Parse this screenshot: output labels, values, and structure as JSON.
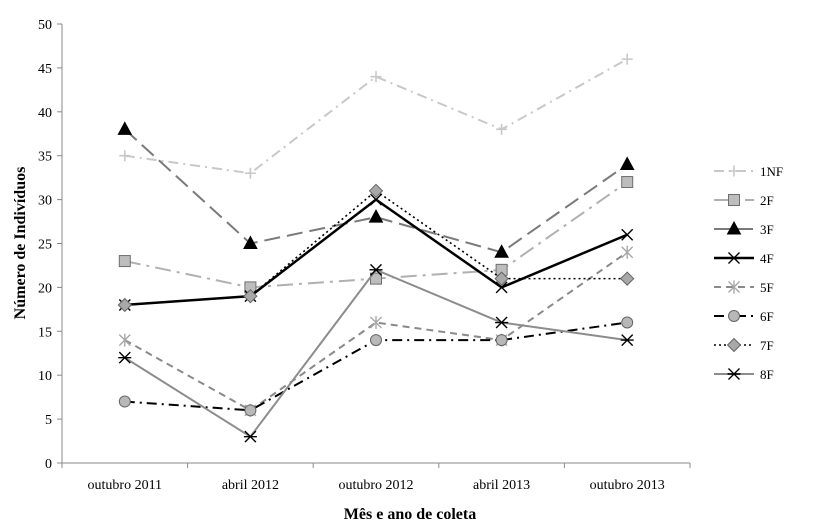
{
  "chart_data": {
    "type": "line",
    "title": "",
    "xlabel": "Mês e ano de coleta",
    "ylabel": "Número de Indivíduos",
    "categories": [
      "outubro 2011",
      "abril 2012",
      "outubro 2012",
      "abril 2013",
      "outubro 2013"
    ],
    "ylim": [
      0,
      50
    ],
    "yticks": [
      0,
      5,
      10,
      15,
      20,
      25,
      30,
      35,
      40,
      45,
      50
    ],
    "grid": false,
    "legend_position": "right",
    "series": [
      {
        "name": "1NF",
        "values": [
          35,
          33,
          44,
          38,
          46
        ],
        "color": "#c8c8c8",
        "dash": "dashdot",
        "marker": "plus",
        "width": 2
      },
      {
        "name": "2F",
        "values": [
          23,
          20,
          21,
          22,
          32
        ],
        "color": "#b0b0b0",
        "dash": "longdashdot",
        "marker": "square",
        "width": 2
      },
      {
        "name": "3F",
        "values": [
          38,
          25,
          28,
          24,
          34
        ],
        "color": "#7a7a7a",
        "dash": "longdash",
        "marker": "triangle",
        "width": 2
      },
      {
        "name": "4F",
        "values": [
          18,
          19,
          30,
          20,
          26
        ],
        "color": "#000000",
        "dash": "solid",
        "marker": "x",
        "width": 2.5
      },
      {
        "name": "5F",
        "values": [
          14,
          6,
          16,
          14,
          24
        ],
        "color": "#8a8a8a",
        "dash": "dash",
        "marker": "star",
        "width": 2
      },
      {
        "name": "6F",
        "values": [
          7,
          6,
          14,
          14,
          16
        ],
        "color": "#000000",
        "dash": "dashdot",
        "marker": "circle",
        "width": 2
      },
      {
        "name": "7F",
        "values": [
          18,
          19,
          31,
          21,
          21
        ],
        "color": "#000000",
        "dash": "dot",
        "marker": "diamond",
        "width": 1.6
      },
      {
        "name": "8F",
        "values": [
          12,
          3,
          22,
          16,
          14
        ],
        "color": "#8c8c8c",
        "dash": "solid",
        "marker": "asterisk",
        "width": 2
      }
    ]
  }
}
